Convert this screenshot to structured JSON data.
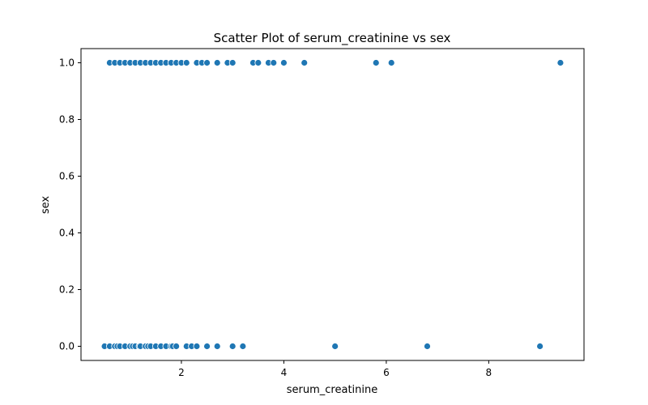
{
  "chart_data": {
    "type": "scatter",
    "title": "Scatter Plot of serum_creatinine vs sex",
    "xlabel": "serum_creatinine",
    "ylabel": "sex",
    "xlim": [
      0.04,
      9.86
    ],
    "ylim": [
      -0.05,
      1.05
    ],
    "xticks": [
      2,
      4,
      6,
      8
    ],
    "xtick_labels": [
      "2",
      "4",
      "6",
      "8"
    ],
    "yticks": [
      0,
      0.2,
      0.4,
      0.6,
      0.8,
      1.0
    ],
    "ytick_labels": [
      "0.0",
      "0.2",
      "0.4",
      "0.6",
      "0.8",
      "1.0"
    ],
    "grid": false,
    "marker_color": "#1f77b4",
    "marker_edge_color": "#ffffff",
    "series": [
      {
        "points": [
          [
            0.5,
            0
          ],
          [
            0.6,
            0
          ],
          [
            0.7,
            0
          ],
          [
            0.75,
            0
          ],
          [
            0.8,
            0
          ],
          [
            0.9,
            0
          ],
          [
            1.0,
            0
          ],
          [
            1.05,
            0
          ],
          [
            1.1,
            0
          ],
          [
            1.18,
            0
          ],
          [
            1.2,
            0
          ],
          [
            1.3,
            0
          ],
          [
            1.35,
            0
          ],
          [
            1.4,
            0
          ],
          [
            1.5,
            0
          ],
          [
            1.6,
            0
          ],
          [
            1.7,
            0
          ],
          [
            1.8,
            0
          ],
          [
            1.83,
            0
          ],
          [
            1.9,
            0
          ],
          [
            2.1,
            0
          ],
          [
            2.2,
            0
          ],
          [
            2.3,
            0
          ],
          [
            2.5,
            0
          ],
          [
            2.7,
            0
          ],
          [
            3.0,
            0
          ],
          [
            3.2,
            0
          ],
          [
            5.0,
            0
          ],
          [
            6.8,
            0
          ],
          [
            9.0,
            0
          ],
          [
            0.6,
            1
          ],
          [
            0.7,
            1
          ],
          [
            0.8,
            1
          ],
          [
            0.9,
            1
          ],
          [
            1.0,
            1
          ],
          [
            1.1,
            1
          ],
          [
            1.2,
            1
          ],
          [
            1.3,
            1
          ],
          [
            1.4,
            1
          ],
          [
            1.5,
            1
          ],
          [
            1.6,
            1
          ],
          [
            1.7,
            1
          ],
          [
            1.8,
            1
          ],
          [
            1.9,
            1
          ],
          [
            2.0,
            1
          ],
          [
            2.1,
            1
          ],
          [
            2.3,
            1
          ],
          [
            2.4,
            1
          ],
          [
            2.5,
            1
          ],
          [
            2.7,
            1
          ],
          [
            2.9,
            1
          ],
          [
            3.0,
            1
          ],
          [
            3.4,
            1
          ],
          [
            3.5,
            1
          ],
          [
            3.7,
            1
          ],
          [
            3.8,
            1
          ],
          [
            4.0,
            1
          ],
          [
            4.4,
            1
          ],
          [
            5.8,
            1
          ],
          [
            6.1,
            1
          ],
          [
            9.4,
            1
          ]
        ]
      }
    ]
  }
}
